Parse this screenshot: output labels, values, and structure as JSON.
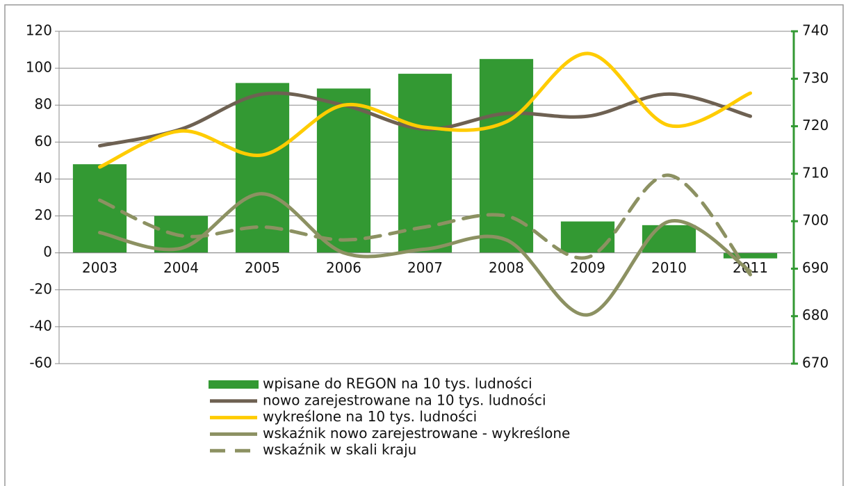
{
  "chart_data": {
    "type": "combo",
    "categories": [
      "2003",
      "2004",
      "2005",
      "2006",
      "2007",
      "2008",
      "2009",
      "2010",
      "2011"
    ],
    "series": [
      {
        "name": "wpisane do REGON na 10 tys. ludności",
        "kind": "bar",
        "color": "#339933",
        "values": [
          48,
          20,
          92,
          89,
          97,
          105,
          17,
          15,
          -3
        ]
      },
      {
        "name": "nowo zarejestrowane na 10 tys. ludności",
        "kind": "line",
        "color": "#6e6152",
        "values": [
          58,
          67,
          86,
          80,
          67,
          75.5,
          74,
          86,
          74
        ]
      },
      {
        "name": "wykreślone na 10 tys. ludności",
        "kind": "line",
        "color": "#ffcc00",
        "values": [
          46.5,
          66,
          53,
          80,
          68,
          71,
          108,
          69,
          86.5
        ]
      },
      {
        "name": "wskaźnik nowo zarejestrowane - wykreślone",
        "kind": "line",
        "color": "#8c9162",
        "values": [
          11,
          2.5,
          32,
          0,
          2,
          7,
          -33.6,
          17,
          -10
        ]
      },
      {
        "name": "wskaźnik w skali kraju",
        "kind": "dashed",
        "color": "#8c9162",
        "values": [
          28.5,
          9.3,
          14,
          7,
          14,
          20,
          -2.4,
          42,
          -11.8
        ]
      }
    ],
    "ylim": [
      -60,
      120
    ],
    "yticks": [
      -60,
      -40,
      -20,
      0,
      20,
      40,
      60,
      80,
      100,
      120
    ],
    "y2lim": [
      670,
      740
    ],
    "y2ticks": [
      670,
      680,
      690,
      700,
      710,
      720,
      730,
      740
    ],
    "grid": true,
    "legend": "bottom"
  }
}
